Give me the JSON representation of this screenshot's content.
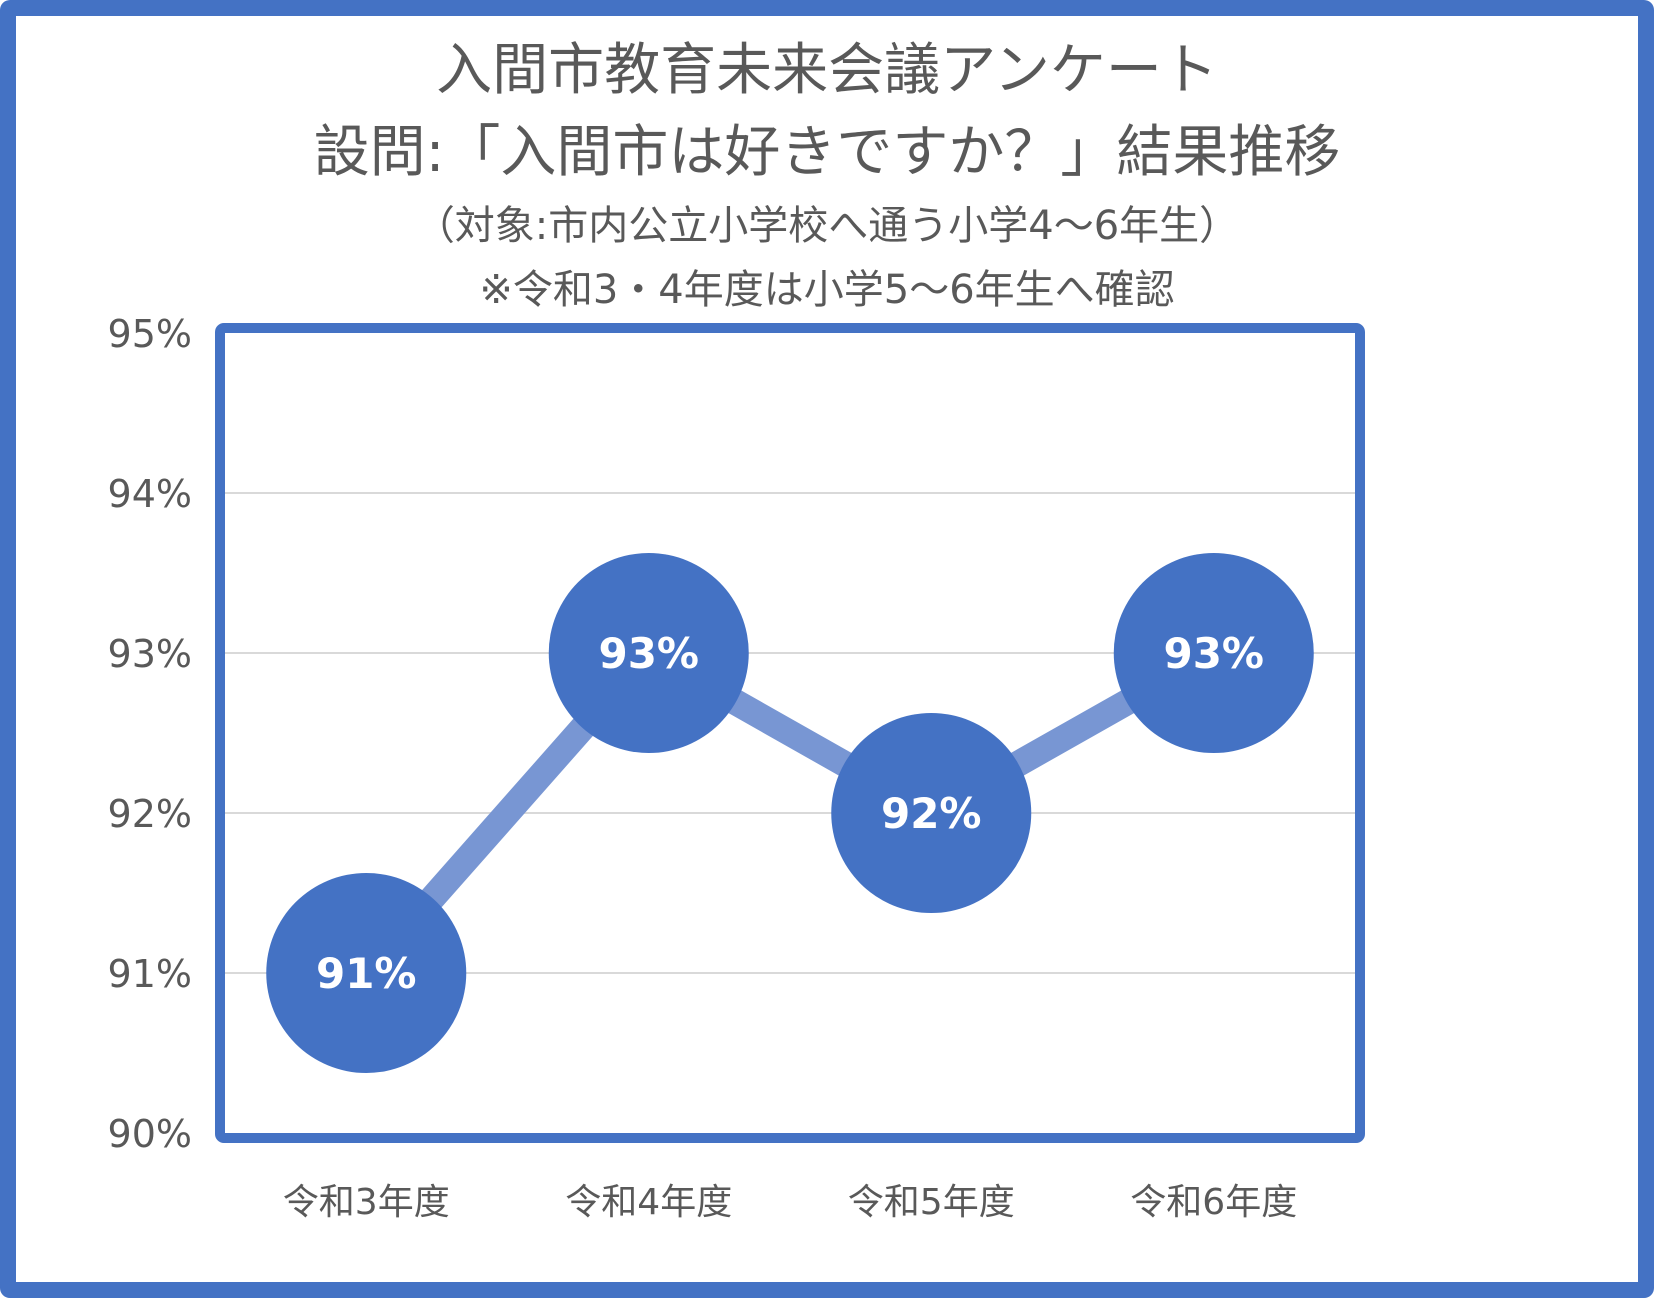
{
  "title": {
    "line1": "入間市教育未来会議アンケート",
    "line2": "設問:「入間市は好きですか？」結果推移",
    "line3": "（対象:市内公立小学校へ通う小学4～6年生）",
    "line4": "※令和3・4年度は小学5～6年生へ確認"
  },
  "chart_data": {
    "type": "line",
    "title": "入間市教育未来会議アンケート 設問:「入間市は好きですか？」結果推移",
    "subtitle": "（対象:市内公立小学校へ通う小学4～6年生） ※令和3・4年度は小学5～6年生へ確認",
    "categories": [
      "令和3年度",
      "令和4年度",
      "令和5年度",
      "令和6年度"
    ],
    "series": [
      {
        "values": [
          91,
          93,
          92,
          93
        ],
        "data_labels": [
          "91%",
          "93%",
          "92%",
          "93%"
        ]
      }
    ],
    "ylim": [
      90,
      95
    ],
    "yticks": [
      90,
      91,
      92,
      93,
      94,
      95
    ],
    "ytick_labels": [
      "90%",
      "91%",
      "92%",
      "93%",
      "94%",
      "95%"
    ],
    "xlabel": "",
    "ylabel": "",
    "grid": true,
    "legend": "none"
  },
  "colors": {
    "frame": "#4472C4",
    "marker": "#4472C4",
    "line": "#7896D3",
    "grid": "#D9D9D9",
    "text": "#595959"
  }
}
